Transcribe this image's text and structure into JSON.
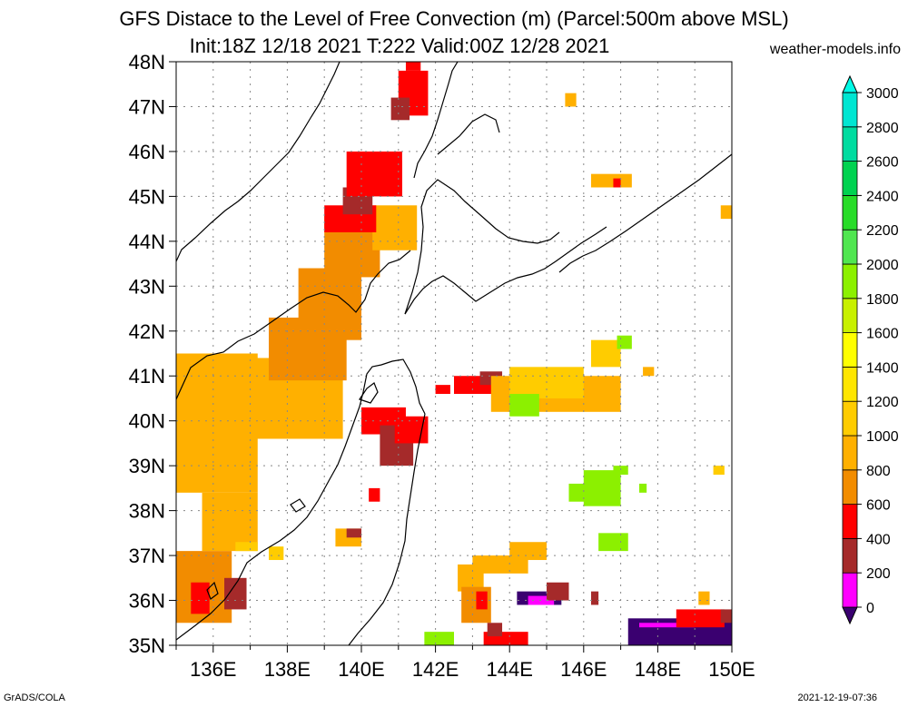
{
  "title_line1": "GFS Distace to the Level of Free Convection (m) (Parcel:500m above MSL)",
  "title_line2": "Init:18Z 12/18 2021 T:222 Valid:00Z 12/28 2021",
  "site": "weather-models.info",
  "credit": "GrADS/COLA",
  "timestamp": "2021-12-19-07:36",
  "lat_labels": [
    "48N",
    "47N",
    "46N",
    "45N",
    "44N",
    "43N",
    "42N",
    "41N",
    "40N",
    "39N",
    "38N",
    "37N",
    "36N",
    "35N"
  ],
  "lon_labels": [
    "136E",
    "138E",
    "140E",
    "142E",
    "144E",
    "146E",
    "148E",
    "150E"
  ],
  "colorbar": {
    "levels": [
      "0",
      "200",
      "400",
      "600",
      "800",
      "1000",
      "1200",
      "1400",
      "1600",
      "1800",
      "2000",
      "2200",
      "2400",
      "2600",
      "2800",
      "3000"
    ],
    "colors": [
      "#3a0070",
      "#ff00ff",
      "#a52a2a",
      "#ff0000",
      "#f28c00",
      "#ffb000",
      "#ffcc00",
      "#ffe600",
      "#ffff00",
      "#c8f000",
      "#8cf000",
      "#50e650",
      "#28dc28",
      "#00d250",
      "#00dca0",
      "#00e6d2",
      "#00fae6"
    ]
  },
  "map": {
    "extent": {
      "lon_min": 135,
      "lon_max": 150,
      "lat_min": 35,
      "lat_max": 48
    },
    "field_colors": {
      "low": "#3a0070",
      "magenta": "#ff00ff",
      "brown": "#a52a2a",
      "red": "#ff0000",
      "orange": "#f28c00",
      "amber": "#ffb000",
      "yellow": "#ffcc00",
      "green": "#8cf000"
    }
  }
}
